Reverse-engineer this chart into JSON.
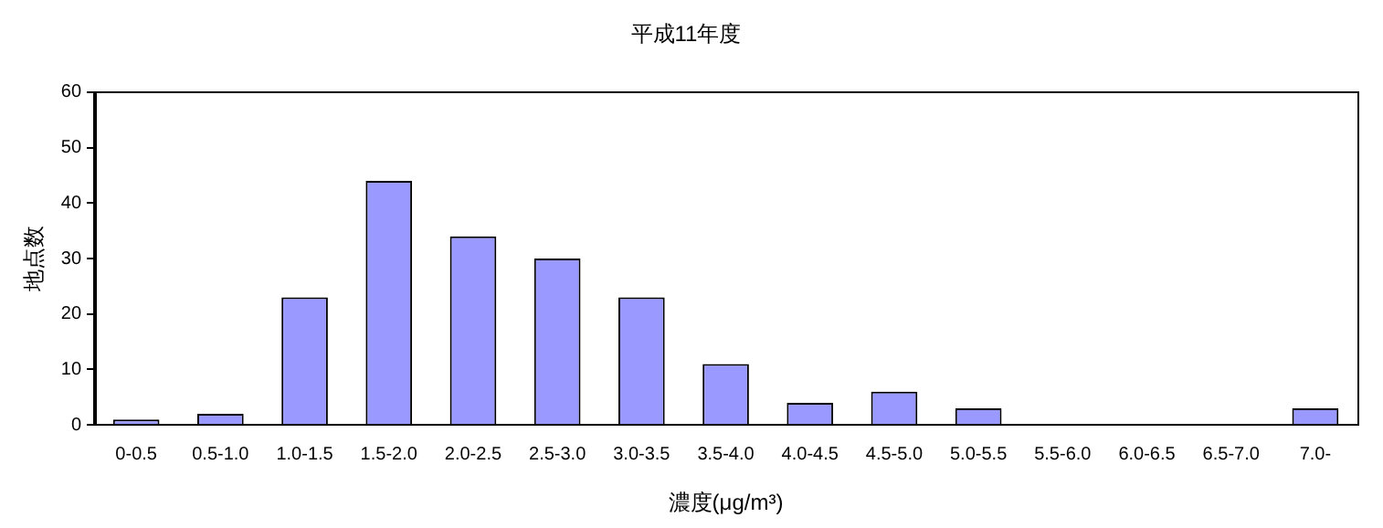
{
  "chart_data": {
    "type": "bar",
    "title": "平成11年度",
    "xlabel": "濃度(μg/m³)",
    "ylabel": "地点数",
    "categories": [
      "0-0.5",
      "0.5-1.0",
      "1.0-1.5",
      "1.5-2.0",
      "2.0-2.5",
      "2.5-3.0",
      "3.0-3.5",
      "3.5-4.0",
      "4.0-4.5",
      "4.5-5.0",
      "5.0-5.5",
      "5.5-6.0",
      "6.0-6.5",
      "6.5-7.0",
      "7.0-"
    ],
    "values": [
      1,
      2,
      23,
      44,
      34,
      30,
      23,
      11,
      4,
      6,
      3,
      0,
      0,
      0,
      3
    ],
    "color": "#9999ff",
    "ylim": [
      0,
      60
    ],
    "yticks": [
      0,
      10,
      20,
      30,
      40,
      50,
      60
    ],
    "grid": false,
    "legend": false
  }
}
